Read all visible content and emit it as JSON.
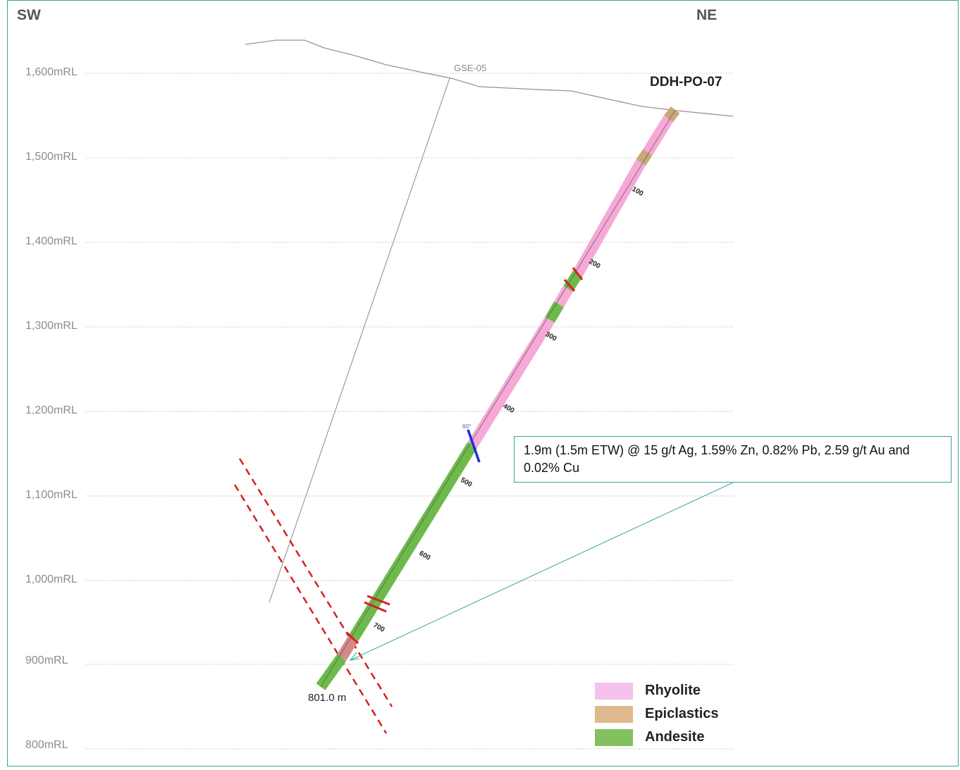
{
  "section": {
    "direction_left": "SW",
    "direction_right": "NE",
    "rl_labels": [
      "1,600mRL",
      "1,500mRL",
      "1,400mRL",
      "1,300mRL",
      "1,200mRL",
      "1,100mRL",
      "1,000mRL",
      "900mRL",
      "800mRL"
    ],
    "hole_name": "DDH-PO-07",
    "reference_hole": "GSE-05",
    "end_of_hole": "801.0 m",
    "depth_ticks": [
      "100",
      "200",
      "300",
      "400",
      "500",
      "600",
      "700"
    ],
    "structure_angle": "60°",
    "callout_text": "1.9m (1.5m ETW) @ 15 g/t Ag,  1.59% Zn, 0.82% Pb, 2.59 g/t Au and 0.02% Cu"
  },
  "legend": [
    {
      "label": "Rhyolite",
      "color": "#f4c2ec"
    },
    {
      "label": "Epiclastics",
      "color": "#dfb88e"
    },
    {
      "label": "Andesite",
      "color": "#82c060"
    }
  ],
  "colors": {
    "rhyolite": "#f6a8d6",
    "epiclastics": "#c8a878",
    "andesite": "#6dba4a",
    "fault": "#d42020",
    "structure": "#1f2fd0",
    "frame": "#3aa59a"
  }
}
